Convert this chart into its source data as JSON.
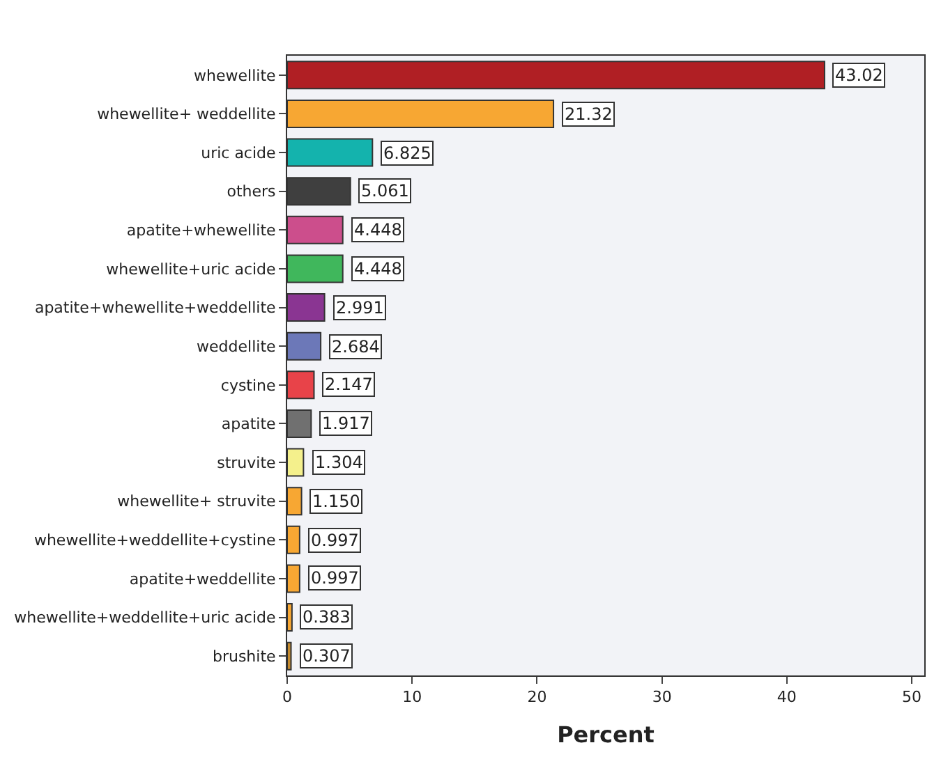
{
  "chart_data": {
    "type": "bar",
    "orientation": "horizontal",
    "xlabel": "Percent",
    "categories": [
      "whewellite",
      "whewellite+ weddellite",
      "uric acide",
      "others",
      "apatite+whewellite",
      "whewellite+uric acide",
      "apatite+whewellite+weddellite",
      "weddellite",
      "cystine",
      "apatite",
      "struvite",
      "whewellite+ struvite",
      "whewellite+weddellite+cystine",
      "apatite+weddellite",
      "whewellite+weddellite+uric acide",
      "brushite"
    ],
    "values": [
      43.02,
      21.32,
      6.825,
      5.061,
      4.448,
      4.448,
      2.991,
      2.684,
      2.147,
      1.917,
      1.304,
      1.15,
      0.997,
      0.997,
      0.383,
      0.307
    ],
    "value_labels": [
      "43.02",
      "21.32",
      "6.825",
      "5.061",
      "4.448",
      "4.448",
      "2.991",
      "2.684",
      "2.147",
      "1.917",
      "1.304",
      "1.150",
      "0.997",
      "0.997",
      "0.383",
      "0.307"
    ],
    "colors": [
      "#b01f24",
      "#f7a733",
      "#14b3ad",
      "#3f3f3f",
      "#cc4e8c",
      "#40b75c",
      "#8a3592",
      "#6c78b8",
      "#e84349",
      "#707070",
      "#f4f08c",
      "#f7a733",
      "#f7a733",
      "#f7a733",
      "#f7a733",
      "#c48a2e"
    ],
    "xlim": [
      0,
      51
    ],
    "xticks": [
      0,
      10,
      20,
      30,
      40,
      50
    ],
    "grid": false
  }
}
